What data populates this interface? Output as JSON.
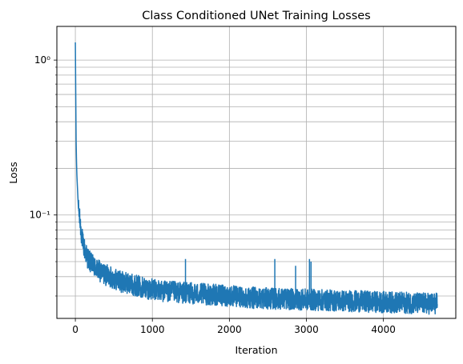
{
  "chart_data": {
    "type": "line",
    "title": "Class Conditioned UNet Training Losses",
    "xlabel": "Iteration",
    "ylabel": "Loss",
    "yscale": "log",
    "xlim": [
      -240,
      4940
    ],
    "ylim": [
      0.0215,
      1.65
    ],
    "grid": true,
    "line_color": "#1f77b4",
    "x_ticks": [
      0,
      1000,
      2000,
      3000,
      4000
    ],
    "x_tick_labels": [
      "0",
      "1000",
      "2000",
      "3000",
      "4000"
    ],
    "y_major_ticks": [
      0.1,
      1
    ],
    "y_tick_labels": [
      "10⁻¹",
      "10⁰"
    ],
    "y_minor_ticks": [
      0.03,
      0.04,
      0.05,
      0.06,
      0.07,
      0.08,
      0.09,
      0.2,
      0.3,
      0.4,
      0.5,
      0.6,
      0.7,
      0.8,
      0.9
    ],
    "series": [
      {
        "x": [
          0,
          5,
          10,
          15,
          20,
          30,
          40,
          50,
          60,
          80,
          100,
          130,
          160,
          200,
          250,
          300,
          350,
          400,
          500,
          600,
          700,
          800,
          900,
          1000,
          1200,
          1400,
          1600,
          1800,
          2000,
          2200,
          2400,
          2600,
          2800,
          3000,
          3200,
          3400,
          3600,
          3800,
          4000,
          4200,
          4400,
          4600,
          4700
        ],
        "y": [
          1.3,
          0.6,
          0.3,
          0.22,
          0.18,
          0.14,
          0.11,
          0.1,
          0.09,
          0.075,
          0.065,
          0.058,
          0.053,
          0.049,
          0.046,
          0.044,
          0.042,
          0.041,
          0.039,
          0.037,
          0.036,
          0.035,
          0.034,
          0.033,
          0.032,
          0.0315,
          0.031,
          0.0305,
          0.03,
          0.0295,
          0.029,
          0.0288,
          0.0286,
          0.0284,
          0.0282,
          0.028,
          0.0278,
          0.0276,
          0.0274,
          0.0272,
          0.027,
          0.0268,
          0.0268
        ]
      }
    ],
    "spikes": [
      {
        "x": 1430,
        "y": 0.052
      },
      {
        "x": 2590,
        "y": 0.052
      },
      {
        "x": 2860,
        "y": 0.047
      },
      {
        "x": 3040,
        "y": 0.052
      },
      {
        "x": 3060,
        "y": 0.05
      }
    ]
  }
}
